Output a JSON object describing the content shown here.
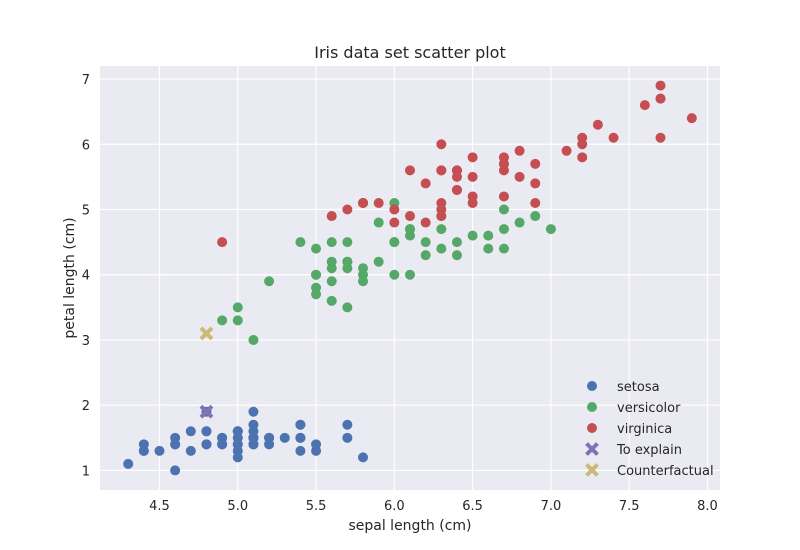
{
  "chart_data": {
    "type": "scatter",
    "title": "Iris data set scatter plot",
    "xlabel": "sepal length (cm)",
    "ylabel": "petal length (cm)",
    "xlim": [
      4.12,
      8.08
    ],
    "ylim": [
      0.7,
      7.2
    ],
    "xticks": [
      4.5,
      5.0,
      5.5,
      6.0,
      6.5,
      7.0,
      7.5,
      8.0
    ],
    "xtick_labels": [
      "4.5",
      "5.0",
      "5.5",
      "6.0",
      "6.5",
      "7.0",
      "7.5",
      "8.0"
    ],
    "yticks": [
      1,
      2,
      3,
      4,
      5,
      6,
      7
    ],
    "ytick_labels": [
      "1",
      "2",
      "3",
      "4",
      "5",
      "6",
      "7"
    ],
    "grid": true,
    "legend_position": "lower-right",
    "series": [
      {
        "name": "setosa",
        "marker": "circle",
        "color": "#4C72B0",
        "points": [
          [
            5.1,
            1.4
          ],
          [
            4.9,
            1.4
          ],
          [
            4.7,
            1.3
          ],
          [
            4.6,
            1.5
          ],
          [
            5.0,
            1.4
          ],
          [
            5.4,
            1.7
          ],
          [
            4.6,
            1.4
          ],
          [
            5.0,
            1.5
          ],
          [
            4.4,
            1.4
          ],
          [
            4.9,
            1.5
          ],
          [
            5.4,
            1.5
          ],
          [
            4.8,
            1.6
          ],
          [
            4.8,
            1.4
          ],
          [
            4.3,
            1.1
          ],
          [
            5.8,
            1.2
          ],
          [
            5.7,
            1.5
          ],
          [
            5.4,
            1.3
          ],
          [
            5.1,
            1.4
          ],
          [
            5.7,
            1.7
          ],
          [
            5.1,
            1.5
          ],
          [
            5.4,
            1.7
          ],
          [
            5.1,
            1.5
          ],
          [
            4.6,
            1.0
          ],
          [
            5.1,
            1.7
          ],
          [
            4.8,
            1.9
          ],
          [
            5.0,
            1.6
          ],
          [
            5.0,
            1.6
          ],
          [
            5.2,
            1.5
          ],
          [
            5.2,
            1.4
          ],
          [
            4.7,
            1.6
          ],
          [
            4.8,
            1.6
          ],
          [
            5.4,
            1.5
          ],
          [
            5.2,
            1.5
          ],
          [
            5.5,
            1.4
          ],
          [
            4.9,
            1.5
          ],
          [
            5.0,
            1.2
          ],
          [
            5.5,
            1.3
          ],
          [
            4.9,
            1.4
          ],
          [
            4.4,
            1.3
          ],
          [
            5.1,
            1.5
          ],
          [
            5.0,
            1.3
          ],
          [
            4.5,
            1.3
          ],
          [
            4.4,
            1.3
          ],
          [
            5.0,
            1.6
          ],
          [
            5.1,
            1.9
          ],
          [
            4.8,
            1.4
          ],
          [
            5.1,
            1.6
          ],
          [
            4.6,
            1.4
          ],
          [
            5.3,
            1.5
          ],
          [
            5.0,
            1.4
          ]
        ]
      },
      {
        "name": "versicolor",
        "marker": "circle",
        "color": "#55A868",
        "points": [
          [
            7.0,
            4.7
          ],
          [
            6.4,
            4.5
          ],
          [
            6.9,
            4.9
          ],
          [
            5.5,
            4.0
          ],
          [
            6.5,
            4.6
          ],
          [
            5.7,
            4.5
          ],
          [
            6.3,
            4.7
          ],
          [
            4.9,
            3.3
          ],
          [
            6.6,
            4.6
          ],
          [
            5.2,
            3.9
          ],
          [
            5.0,
            3.5
          ],
          [
            5.9,
            4.2
          ],
          [
            6.0,
            4.0
          ],
          [
            6.1,
            4.7
          ],
          [
            5.6,
            3.6
          ],
          [
            6.7,
            4.4
          ],
          [
            5.6,
            4.5
          ],
          [
            5.8,
            4.1
          ],
          [
            6.2,
            4.5
          ],
          [
            5.6,
            3.9
          ],
          [
            5.9,
            4.8
          ],
          [
            6.1,
            4.0
          ],
          [
            6.3,
            4.9
          ],
          [
            6.1,
            4.7
          ],
          [
            6.4,
            4.3
          ],
          [
            6.6,
            4.4
          ],
          [
            6.8,
            4.8
          ],
          [
            6.7,
            5.0
          ],
          [
            6.0,
            4.5
          ],
          [
            5.7,
            3.5
          ],
          [
            5.5,
            3.8
          ],
          [
            5.5,
            3.7
          ],
          [
            5.8,
            3.9
          ],
          [
            6.0,
            5.1
          ],
          [
            5.4,
            4.5
          ],
          [
            6.0,
            4.5
          ],
          [
            6.7,
            4.7
          ],
          [
            6.3,
            4.4
          ],
          [
            5.6,
            4.1
          ],
          [
            5.5,
            4.0
          ],
          [
            5.5,
            4.4
          ],
          [
            6.1,
            4.6
          ],
          [
            5.8,
            4.0
          ],
          [
            5.0,
            3.3
          ],
          [
            5.6,
            4.2
          ],
          [
            5.7,
            4.2
          ],
          [
            5.7,
            4.2
          ],
          [
            6.2,
            4.3
          ],
          [
            5.1,
            3.0
          ],
          [
            5.7,
            4.1
          ]
        ]
      },
      {
        "name": "virginica",
        "marker": "circle",
        "color": "#C44E52",
        "points": [
          [
            6.3,
            6.0
          ],
          [
            5.8,
            5.1
          ],
          [
            7.1,
            5.9
          ],
          [
            6.3,
            5.6
          ],
          [
            6.5,
            5.8
          ],
          [
            7.6,
            6.6
          ],
          [
            4.9,
            4.5
          ],
          [
            7.3,
            6.3
          ],
          [
            6.7,
            5.8
          ],
          [
            7.2,
            6.1
          ],
          [
            6.5,
            5.1
          ],
          [
            6.4,
            5.3
          ],
          [
            6.8,
            5.5
          ],
          [
            5.7,
            5.0
          ],
          [
            5.8,
            5.1
          ],
          [
            6.4,
            5.3
          ],
          [
            6.5,
            5.5
          ],
          [
            7.7,
            6.7
          ],
          [
            7.7,
            6.9
          ],
          [
            6.0,
            5.0
          ],
          [
            6.9,
            5.7
          ],
          [
            5.6,
            4.9
          ],
          [
            7.7,
            6.7
          ],
          [
            6.3,
            4.9
          ],
          [
            6.7,
            5.7
          ],
          [
            7.2,
            6.0
          ],
          [
            6.2,
            4.8
          ],
          [
            6.1,
            4.9
          ],
          [
            6.4,
            5.6
          ],
          [
            7.2,
            5.8
          ],
          [
            7.4,
            6.1
          ],
          [
            7.9,
            6.4
          ],
          [
            6.4,
            5.6
          ],
          [
            6.3,
            5.1
          ],
          [
            6.1,
            5.6
          ],
          [
            7.7,
            6.1
          ],
          [
            6.3,
            5.6
          ],
          [
            6.4,
            5.5
          ],
          [
            6.0,
            4.8
          ],
          [
            6.9,
            5.4
          ],
          [
            6.7,
            5.6
          ],
          [
            6.9,
            5.1
          ],
          [
            5.8,
            5.1
          ],
          [
            6.8,
            5.9
          ],
          [
            6.7,
            5.7
          ],
          [
            6.7,
            5.2
          ],
          [
            6.3,
            5.0
          ],
          [
            6.5,
            5.2
          ],
          [
            6.2,
            5.4
          ],
          [
            5.9,
            5.1
          ]
        ]
      },
      {
        "name": "To explain",
        "marker": "x",
        "color": "#8172B2",
        "points": [
          [
            4.8,
            1.9
          ]
        ]
      },
      {
        "name": "Counterfactual",
        "marker": "x",
        "color": "#CCB974",
        "points": [
          [
            4.8,
            3.1
          ]
        ]
      }
    ]
  }
}
